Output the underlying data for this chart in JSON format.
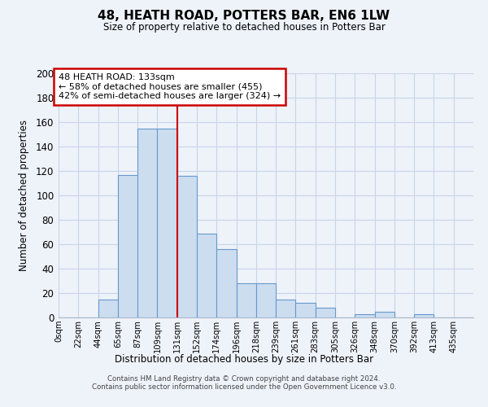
{
  "title": "48, HEATH ROAD, POTTERS BAR, EN6 1LW",
  "subtitle": "Size of property relative to detached houses in Potters Bar",
  "xlabel": "Distribution of detached houses by size in Potters Bar",
  "ylabel": "Number of detached properties",
  "bin_labels": [
    "0sqm",
    "22sqm",
    "44sqm",
    "65sqm",
    "87sqm",
    "109sqm",
    "131sqm",
    "152sqm",
    "174sqm",
    "196sqm",
    "218sqm",
    "239sqm",
    "261sqm",
    "283sqm",
    "305sqm",
    "326sqm",
    "348sqm",
    "370sqm",
    "392sqm",
    "413sqm",
    "435sqm"
  ],
  "bar_heights": [
    0,
    0,
    15,
    117,
    155,
    155,
    116,
    69,
    56,
    28,
    28,
    15,
    12,
    8,
    0,
    3,
    5,
    0,
    3,
    0,
    0
  ],
  "bar_color": "#ccddf0",
  "bar_edge_color": "#6699cc",
  "annotation_title": "48 HEATH ROAD: 133sqm",
  "annotation_line1": "← 58% of detached houses are smaller (455)",
  "annotation_line2": "42% of semi-detached houses are larger (324) →",
  "annotation_box_color": "#ffffff",
  "annotation_box_edge": "#cc0000",
  "vline_color": "#cc0000",
  "vline_x": 6,
  "ylim": [
    0,
    200
  ],
  "yticks": [
    0,
    20,
    40,
    60,
    80,
    100,
    120,
    140,
    160,
    180,
    200
  ],
  "footer_line1": "Contains HM Land Registry data © Crown copyright and database right 2024.",
  "footer_line2": "Contains public sector information licensed under the Open Government Licence v3.0.",
  "bg_color": "#eef2f9",
  "grid_color": "#c8d4e8",
  "spine_color": "#aabbcc"
}
